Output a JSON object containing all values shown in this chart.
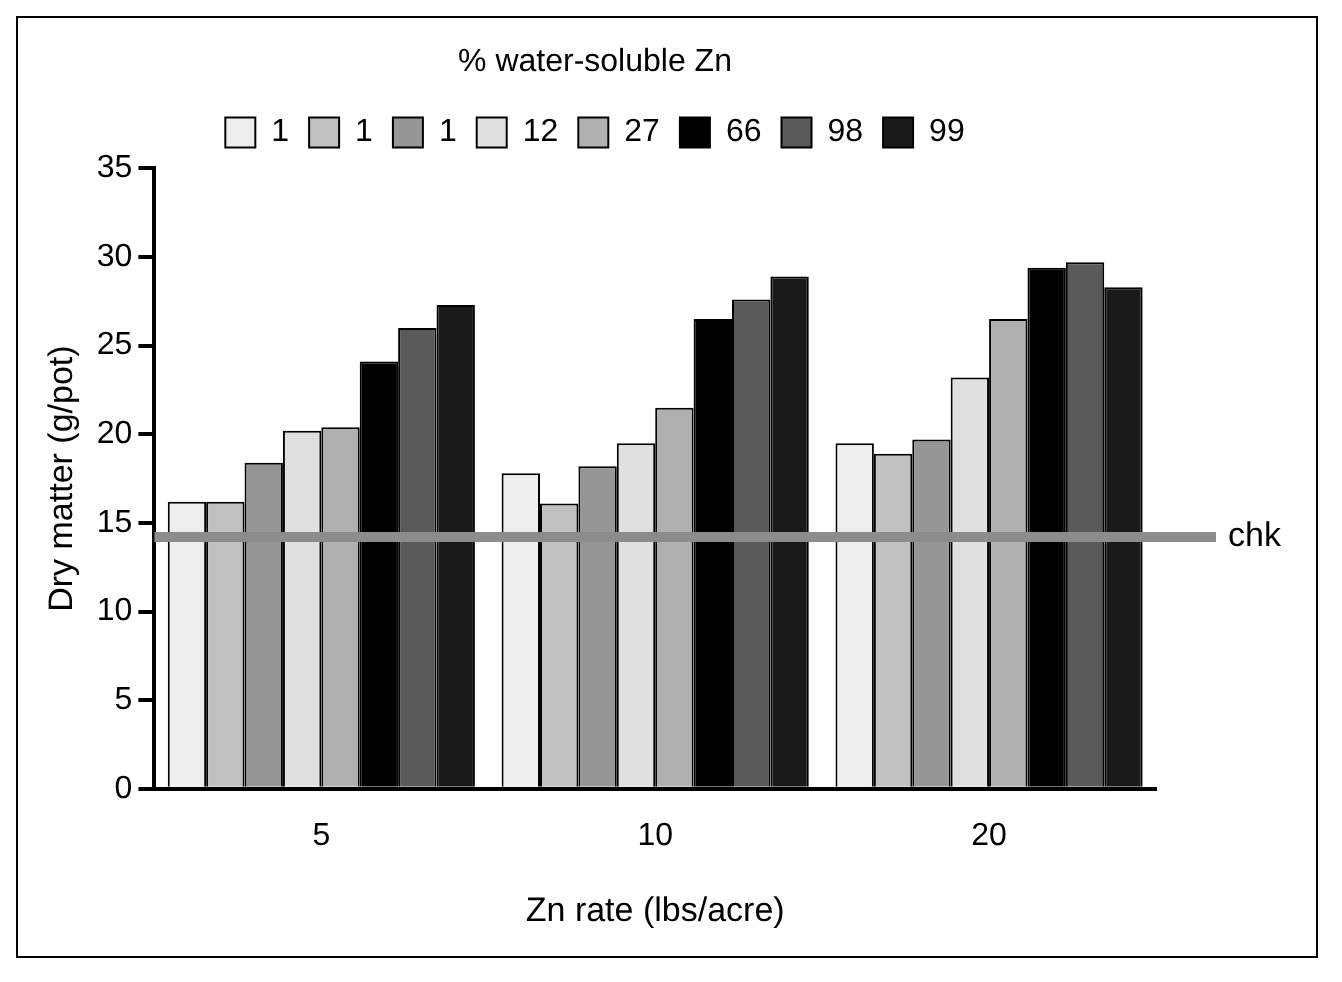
{
  "chart_data": {
    "type": "bar",
    "xlabel": "Zn rate (lbs/acre)",
    "ylabel": "Dry matter (g/pot)",
    "legend_title": "% water-soluble Zn",
    "legend": "top",
    "grid": false,
    "categories": [
      "5",
      "10",
      "20"
    ],
    "ylim": [
      0,
      35
    ],
    "yticks": [
      0,
      5,
      10,
      15,
      20,
      25,
      30,
      35
    ],
    "series": [
      {
        "name": "1",
        "color": "#eeeeee",
        "values": [
          16.2,
          17.8,
          19.5
        ]
      },
      {
        "name": "1",
        "color": "#c0c0c0",
        "values": [
          16.2,
          16.1,
          18.9
        ]
      },
      {
        "name": "1",
        "color": "#969696",
        "values": [
          18.4,
          18.2,
          19.7
        ]
      },
      {
        "name": "12",
        "color": "#e0e0e0",
        "values": [
          20.2,
          19.5,
          23.2
        ]
      },
      {
        "name": "27",
        "color": "#b0b0b0",
        "values": [
          20.4,
          21.5,
          26.5
        ]
      },
      {
        "name": "66",
        "color": "#000000",
        "values": [
          24.1,
          26.5,
          29.4
        ]
      },
      {
        "name": "98",
        "color": "#5a5a5a",
        "values": [
          26.0,
          27.6,
          29.7
        ]
      },
      {
        "name": "99",
        "color": "#1a1a1a",
        "values": [
          27.3,
          28.9,
          28.3
        ]
      }
    ],
    "ref_lines": [
      {
        "axis": "y",
        "value": 14.2,
        "label": "chk",
        "color": "#8c8c8c"
      }
    ]
  }
}
